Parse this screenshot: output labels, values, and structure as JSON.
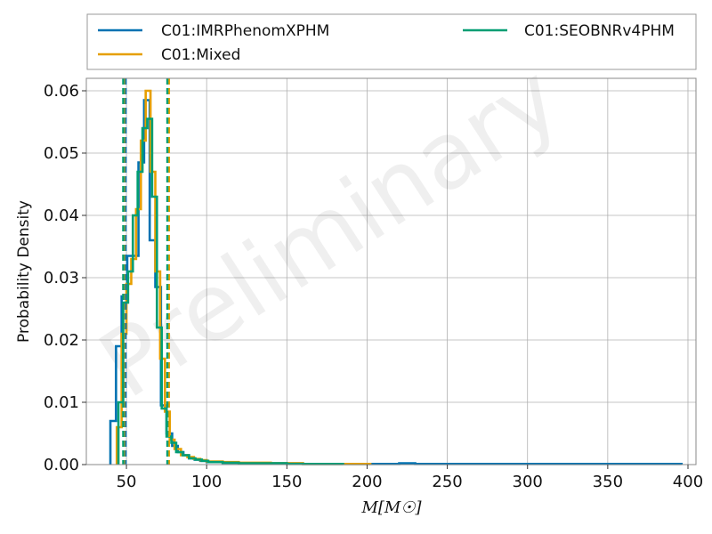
{
  "chart_data": {
    "type": "histogram",
    "xlabel": "M[M☉]",
    "ylabel": "Probability Density",
    "xlim": [
      25,
      405
    ],
    "ylim": [
      0,
      0.062
    ],
    "xticks": [
      50,
      100,
      150,
      200,
      250,
      300,
      350,
      400
    ],
    "yticks": [
      0.0,
      0.01,
      0.02,
      0.03,
      0.04,
      0.05,
      0.06
    ],
    "grid": true,
    "legend_position": "top (above plot)",
    "watermark": "Preliminary",
    "series": [
      {
        "name": "C01:IMRPhenomXPHM",
        "color": "#0072b2",
        "edges": [
          40,
          43.5,
          47,
          50.5,
          54,
          57.5,
          61,
          64.5,
          68,
          71.5,
          75,
          78.5,
          82,
          85.5,
          89,
          92.5,
          96,
          100,
          110,
          120,
          140,
          160,
          200,
          220,
          230,
          250,
          300,
          396
        ],
        "values": [
          0.007,
          0.019,
          0.027,
          0.0335,
          0.0335,
          0.0485,
          0.0585,
          0.036,
          0.0285,
          0.0095,
          0.005,
          0.003,
          0.002,
          0.0015,
          0.001,
          0.0008,
          0.0006,
          0.0004,
          0.0003,
          0.0002,
          0.0002,
          0.0001,
          0.0001,
          0.0002,
          0.0001,
          0.0001,
          0.0001
        ],
        "interval": [
          49.5,
          76
        ]
      },
      {
        "name": "C01:Mixed",
        "color": "#e69f00",
        "edges": [
          44,
          47,
          50,
          53,
          56,
          59,
          62,
          65,
          68,
          71,
          74,
          77,
          80,
          84,
          88,
          92,
          96,
          100,
          110,
          120,
          140,
          160,
          180,
          202
        ],
        "values": [
          0.006,
          0.021,
          0.029,
          0.033,
          0.041,
          0.052,
          0.06,
          0.047,
          0.031,
          0.017,
          0.0085,
          0.004,
          0.0025,
          0.0015,
          0.0012,
          0.0009,
          0.0007,
          0.0005,
          0.0004,
          0.0003,
          0.0002,
          0.0001,
          0.0001
        ],
        "interval": [
          48.5,
          76.5
        ]
      },
      {
        "name": "C01:SEOBNRv4PHM",
        "color": "#009e73",
        "edges": [
          45,
          48,
          51,
          54,
          57,
          60,
          63,
          66,
          69,
          72,
          75,
          78,
          81,
          85,
          89,
          93,
          97,
          101,
          110,
          120,
          135,
          150,
          170,
          185
        ],
        "values": [
          0.01,
          0.026,
          0.031,
          0.04,
          0.047,
          0.054,
          0.0555,
          0.043,
          0.022,
          0.009,
          0.0045,
          0.0035,
          0.002,
          0.0015,
          0.001,
          0.0008,
          0.0006,
          0.0004,
          0.0003,
          0.0002,
          0.0002,
          0.0001,
          0.0001
        ],
        "interval": [
          48,
          75.5
        ]
      }
    ]
  },
  "legend": {
    "items": [
      "C01:IMRPhenomXPHM",
      "C01:Mixed",
      "C01:SEOBNRv4PHM"
    ]
  }
}
